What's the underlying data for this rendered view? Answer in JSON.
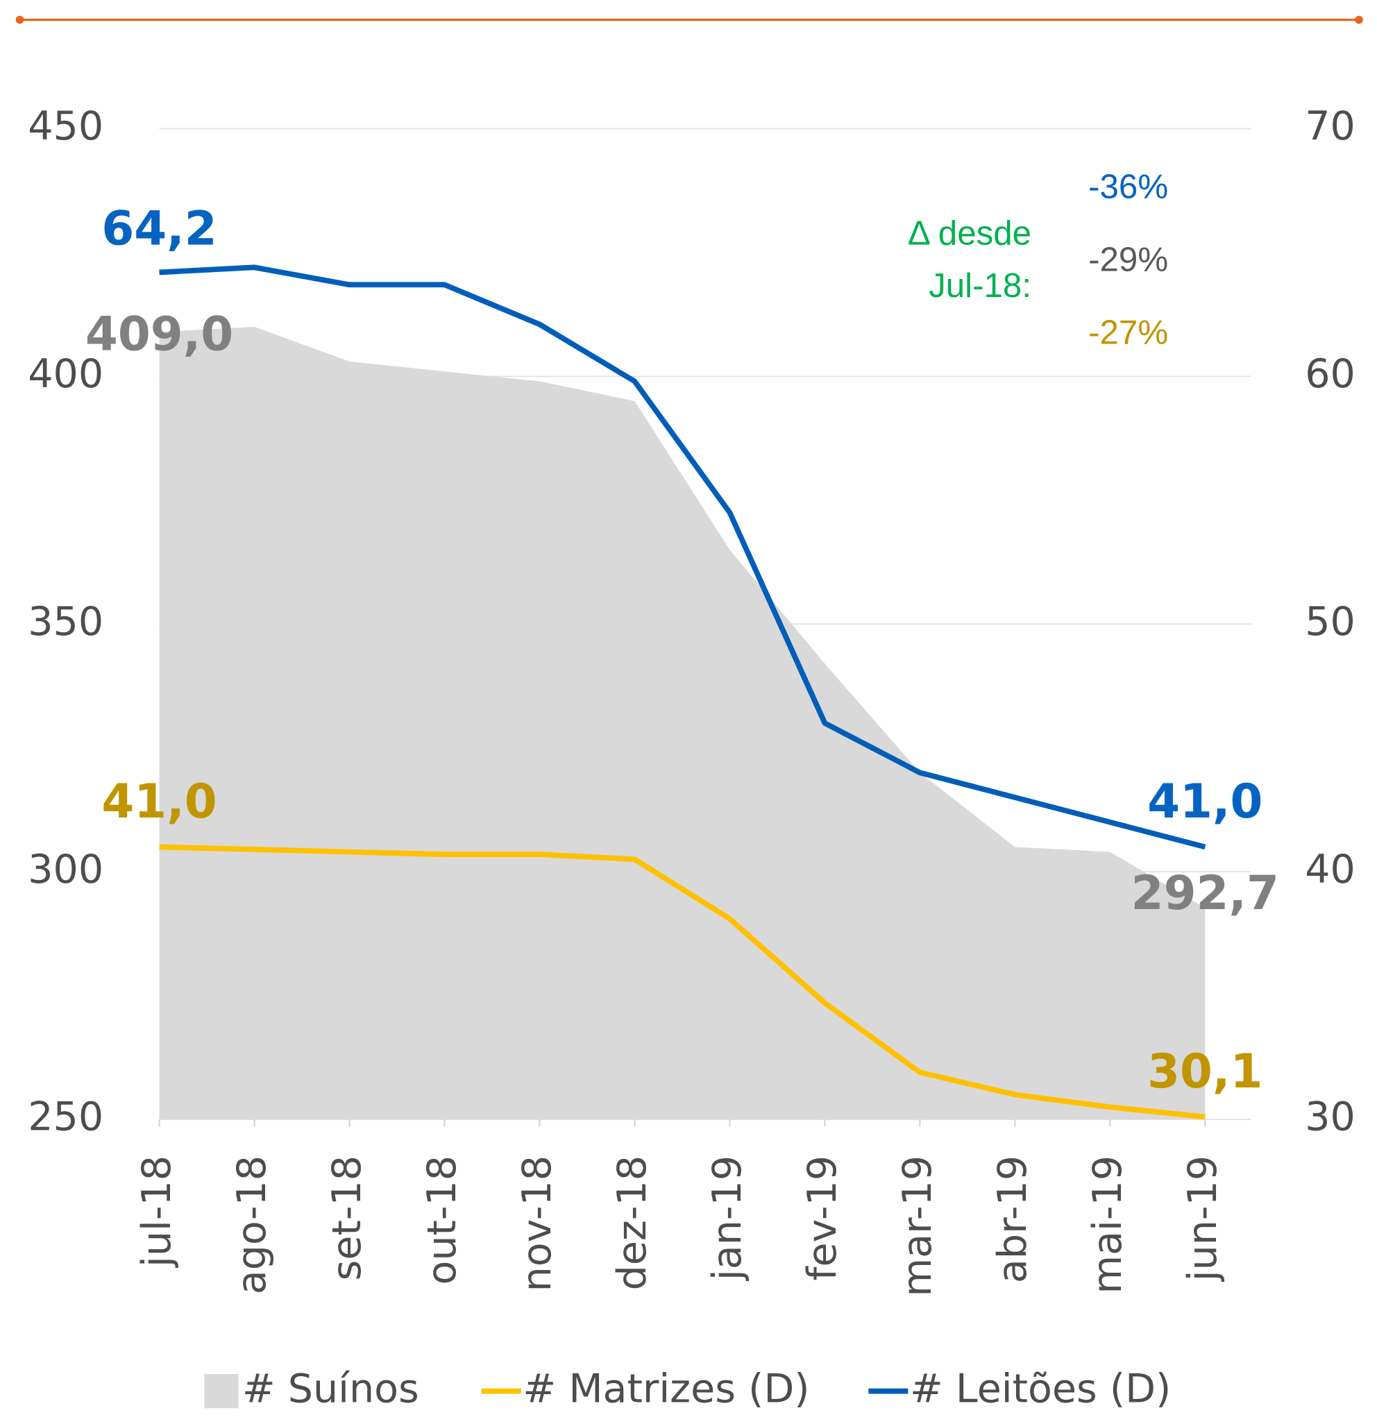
{
  "chart_data": {
    "type": "line",
    "categories": [
      "jul-18",
      "ago-18",
      "set-18",
      "out-18",
      "nov-18",
      "dez-18",
      "jan-19",
      "fev-19",
      "mar-19",
      "abr-19",
      "mai-19",
      "jun-19"
    ],
    "series": [
      {
        "name": "# Suínos",
        "type": "area",
        "color": "#d9d9d9",
        "label_color": "#808080",
        "values": [
          409.0,
          410,
          403,
          401,
          399,
          395,
          365,
          342,
          320,
          305,
          304,
          292.7
        ],
        "value_labels": [
          "409,0",
          null,
          null,
          null,
          null,
          null,
          null,
          null,
          null,
          null,
          null,
          "292,7"
        ]
      },
      {
        "name": "# Matrizes (D)",
        "axis": "y2",
        "color": "#ffc000",
        "label_color": "#c09500",
        "values": [
          41.0,
          40.9,
          40.8,
          40.7,
          40.7,
          40.5,
          38.1,
          34.7,
          31.9,
          31.0,
          30.5,
          30.1
        ],
        "value_labels": [
          "41,0",
          null,
          null,
          null,
          null,
          null,
          null,
          null,
          null,
          null,
          null,
          "30,1"
        ]
      },
      {
        "name": "# Leitões (D)",
        "axis": "y2",
        "color": "#005eb8",
        "label_color": "#0563c1",
        "values": [
          64.2,
          64.4,
          63.7,
          63.7,
          62.1,
          59.8,
          54.5,
          46.0,
          44.0,
          43.0,
          42.0,
          41.0
        ],
        "value_labels": [
          "64,2",
          null,
          null,
          null,
          null,
          null,
          null,
          null,
          null,
          null,
          null,
          "41,0"
        ]
      }
    ],
    "ylim": [
      250,
      450
    ],
    "yticks": [
      250,
      300,
      350,
      400,
      450
    ],
    "y2lim": [
      30,
      70
    ],
    "y2ticks": [
      30,
      40,
      50,
      60,
      70
    ],
    "grid": true,
    "legend": "bottom",
    "annotation": {
      "lines": [
        "Δ desde",
        "Jul-18:"
      ],
      "color": "#00b050"
    },
    "changes": [
      {
        "text": "-36%",
        "color": "#0563c1"
      },
      {
        "text": "-29%",
        "color": "#595959"
      },
      {
        "text": "-27%",
        "color": "#c09500"
      }
    ]
  }
}
